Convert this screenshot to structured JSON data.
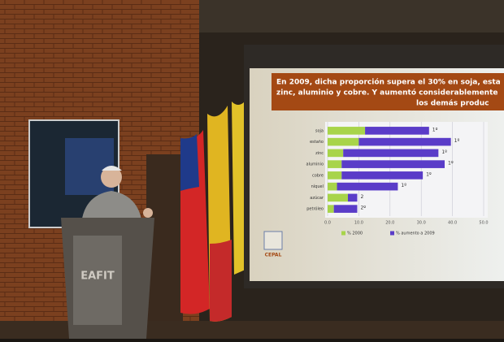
{
  "slide": {
    "title_lines": [
      "En 2009, dicha proporción supera el 30% en soja, esta",
      "zinc, aluminio y cobre. Y aumentó considerablemente",
      "los demás produc"
    ],
    "chart": {
      "type": "bar",
      "categories": [
        "soja",
        "estaño",
        "zinc",
        "aluminio",
        "cobre",
        "níquel",
        "azúcar",
        "petróleo"
      ],
      "series": [
        {
          "name": "% 2000",
          "color": "#a8d44a",
          "values": [
            12,
            10,
            5,
            4.5,
            4.5,
            3,
            6.5,
            2
          ]
        },
        {
          "name": "% aumento a 2009",
          "color": "#5a3cc8",
          "values": [
            20.5,
            29.5,
            30.5,
            33,
            26,
            19.5,
            3,
            7.5
          ]
        }
      ],
      "rank_labels": [
        "1º",
        "1º",
        "1º",
        "1º",
        "1º",
        "1º",
        "2",
        "2º"
      ],
      "xlim": [
        0,
        50
      ],
      "xticks": [
        {
          "value": 0,
          "label": "0.0"
        },
        {
          "value": 10,
          "label": "10.0"
        },
        {
          "value": 20,
          "label": "20.0"
        },
        {
          "value": 30,
          "label": "30.0"
        },
        {
          "value": 40,
          "label": "40.0"
        },
        {
          "value": 50,
          "label": "50.0"
        }
      ],
      "stacked": true
    },
    "logo": "CEPAL"
  },
  "podium": {
    "label": "EAFIT"
  }
}
